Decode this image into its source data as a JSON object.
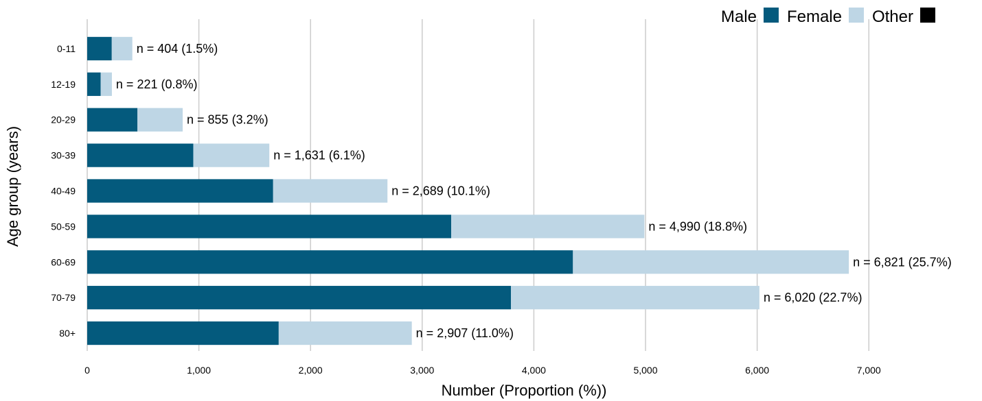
{
  "chart_data": {
    "type": "bar",
    "orientation": "horizontal",
    "stacked": true,
    "xlabel": "Number (Proportion (%))",
    "ylabel": "Age group (years)",
    "xlim": [
      0,
      7300
    ],
    "xticks": [
      0,
      1000,
      2000,
      3000,
      4000,
      5000,
      6000,
      7000
    ],
    "xtick_labels": [
      "0",
      "1,000",
      "2,000",
      "3,000",
      "4,000",
      "5,000",
      "6,000",
      "7,000"
    ],
    "grid": "vertical",
    "legend_position": "top-right",
    "categories": [
      "0-11",
      "12-19",
      "20-29",
      "30-39",
      "40-49",
      "50-59",
      "60-69",
      "70-79",
      "80+"
    ],
    "series": [
      {
        "name": "Male",
        "color": "#045a7d",
        "values": [
          220,
          120,
          450,
          950,
          1665,
          3260,
          4350,
          3795,
          1715
        ]
      },
      {
        "name": "Female",
        "color": "#bed6e5",
        "values": [
          184,
          101,
          405,
          681,
          1024,
          1730,
          2471,
          2225,
          1192
        ]
      },
      {
        "name": "Other",
        "color": "#000000",
        "values": [
          0,
          0,
          0,
          0,
          0,
          0,
          0,
          0,
          0
        ]
      }
    ],
    "totals": [
      404,
      221,
      855,
      1631,
      2689,
      4990,
      6821,
      6020,
      2907
    ],
    "bar_labels": [
      "n = 404 (1.5%)",
      "n = 221 (0.8%)",
      "n = 855 (3.2%)",
      "n = 1,631 (6.1%)",
      "n = 2,689 (10.1%)",
      "n = 4,990 (18.8%)",
      "n = 6,821 (25.7%)",
      "n = 6,020 (22.7%)",
      "n = 2,907 (11.0%)"
    ]
  }
}
